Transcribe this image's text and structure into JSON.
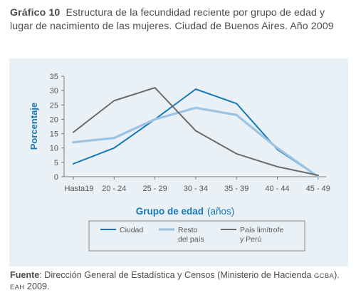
{
  "title": {
    "number": "Gráfico 10",
    "text": "Estructura de la fecundidad reciente por grupo de edad y lugar de nacimiento de las mujeres. Ciudad de Buenos Aires. Año 2009"
  },
  "source": {
    "label": "Fuente",
    "text_a": ": Dirección General de Estadística y Censos (Ministerio de Hacienda ",
    "gcba": "GCBA",
    "text_b": "). ",
    "eah": "EAH",
    "text_c": " 2009."
  },
  "chart_data": {
    "type": "line",
    "categories": [
      "Hasta19",
      "20 - 24",
      "25 - 29",
      "30 - 34",
      "35 - 39",
      "40 - 44",
      "45 - 49"
    ],
    "ylabel": "Porcentaje",
    "xlabel": "Grupo de edad",
    "xlabel_unit": "(años)",
    "ylim": [
      0,
      35
    ],
    "yticks": [
      0,
      5,
      10,
      15,
      20,
      25,
      30,
      35
    ],
    "grid": false,
    "legend_position": "bottom",
    "series": [
      {
        "name": "Ciudad",
        "color": "#1478b8",
        "values": [
          4.5,
          10,
          20,
          30.5,
          25.5,
          9.5,
          0
        ]
      },
      {
        "name": "Resto del país",
        "label_lines": [
          "Resto",
          "del país"
        ],
        "color": "#9ac3e4",
        "values": [
          12,
          13.5,
          20,
          24,
          21.5,
          10,
          0
        ]
      },
      {
        "name": "País limítrofe y Perú",
        "label_lines": [
          "País limítrofe",
          "y Perú"
        ],
        "color": "#6b6b6b",
        "values": [
          15.5,
          26.5,
          31,
          16,
          8,
          3.5,
          0.5
        ]
      }
    ]
  }
}
